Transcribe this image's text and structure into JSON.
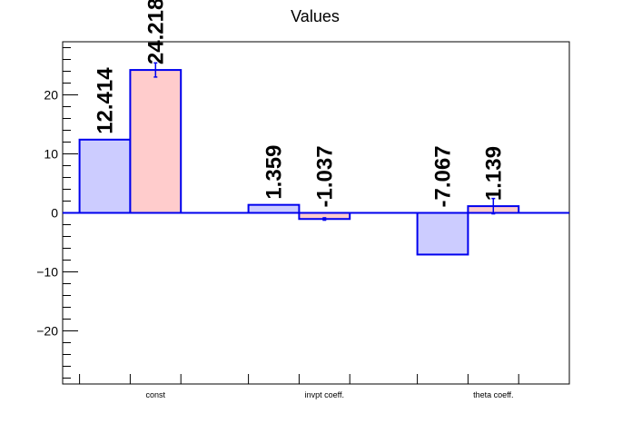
{
  "chart_data": {
    "type": "bar",
    "title": "Values",
    "xlabel": "",
    "ylabel": "",
    "categories": [
      "const",
      "invpt coeff.",
      "theta coeff."
    ],
    "series": [
      {
        "values": [
          12.414,
          1.359,
          -7.067
        ],
        "labels": [
          "12.414",
          "1.359",
          "-7.067"
        ],
        "errors": [
          0,
          0,
          0
        ],
        "fill": "#ccccff"
      },
      {
        "values": [
          24.218,
          -1.037,
          1.139
        ],
        "labels": [
          "24.218",
          "-1.037",
          "1.139"
        ],
        "errors": [
          1.2,
          0.2,
          1.3
        ],
        "fill": "#ffcccc"
      }
    ],
    "ylim": [
      -29,
      29
    ],
    "yticks": [
      -20,
      -10,
      0,
      10,
      20
    ],
    "ytick_labels": [
      "−20",
      "−10",
      "0",
      "10",
      "20"
    ],
    "grid": false,
    "legend": "none",
    "colors": {
      "outline": "#0000ee",
      "axis": "#000000",
      "zero_line": "#0000ee"
    }
  }
}
